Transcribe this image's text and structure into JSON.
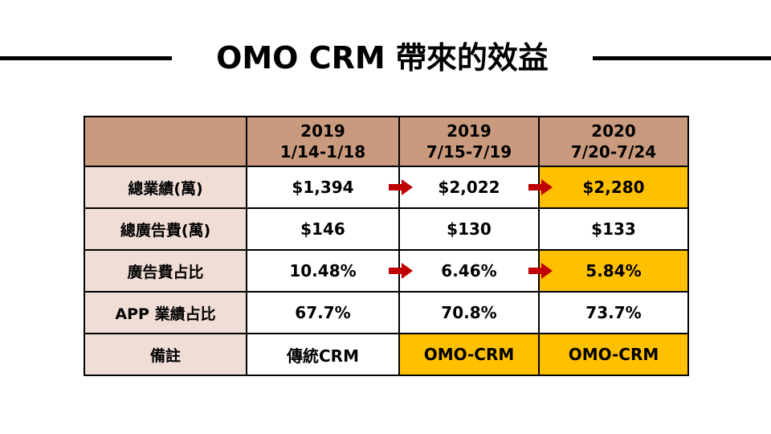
{
  "title": "OMO CRM 帶來的效益",
  "colors": {
    "header_bg": "#c99a7d",
    "label_bg": "#f0ddd5",
    "highlight": "#ffc000",
    "arrow": "#c00000"
  },
  "table": {
    "headers": [
      {
        "line1": "",
        "line2": ""
      },
      {
        "line1": "2019",
        "line2": "1/14-1/18"
      },
      {
        "line1": "2019",
        "line2": "7/15-7/19"
      },
      {
        "line1": "2020",
        "line2": "7/20-7/24"
      }
    ],
    "rows": [
      {
        "label": "總業績(萬)",
        "cells": [
          "$1,394",
          "$2,022",
          "$2,280"
        ]
      },
      {
        "label": "總廣告費(萬)",
        "cells": [
          "$146",
          "$130",
          "$133"
        ]
      },
      {
        "label": "廣告費占比",
        "cells": [
          "10.48%",
          "6.46%",
          "5.84%"
        ]
      },
      {
        "label": "APP 業績占比",
        "cells": [
          "67.7%",
          "70.8%",
          "73.7%"
        ]
      },
      {
        "label": "備註",
        "cells": [
          "傳統CRM",
          "OMO-CRM",
          "OMO-CRM"
        ]
      }
    ]
  }
}
